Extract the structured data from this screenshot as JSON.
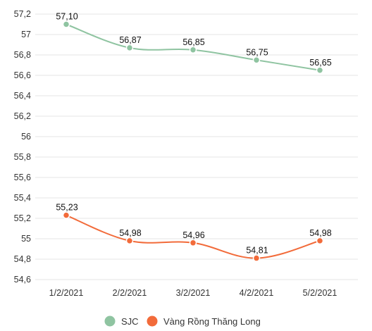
{
  "chart_data": {
    "type": "line",
    "categories": [
      "1/2/2021",
      "2/2/2021",
      "3/2/2021",
      "4/2/2021",
      "5/2/2021"
    ],
    "y_ticks": [
      "57,2",
      "57",
      "56,8",
      "56,6",
      "56,4",
      "56,2",
      "56",
      "55,8",
      "55,6",
      "55,4",
      "55,2",
      "55",
      "54,8",
      "54,6"
    ],
    "ylim": [
      54.6,
      57.2
    ],
    "grid": true,
    "legend_position": "bottom",
    "series": [
      {
        "name": "SJC",
        "color": "#8fc4a1",
        "values": [
          57.1,
          56.87,
          56.85,
          56.75,
          56.65
        ],
        "labels": [
          "57,10",
          "56,87",
          "56,85",
          "56,75",
          "56,65"
        ]
      },
      {
        "name": "Vàng Rồng Thăng Long",
        "color": "#f26b3a",
        "values": [
          55.23,
          54.98,
          54.96,
          54.81,
          54.98
        ],
        "labels": [
          "55,23",
          "54,98",
          "54,96",
          "54,81",
          "54,98"
        ]
      }
    ]
  }
}
